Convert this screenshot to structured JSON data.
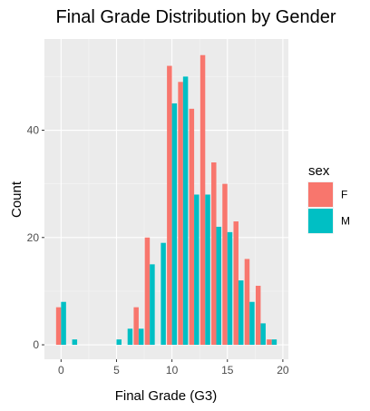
{
  "chart_data": {
    "type": "bar",
    "title": "Final Grade Distribution by Gender",
    "xlabel": "Final Grade (G3)",
    "ylabel": "Count",
    "x_ticks": [
      0,
      5,
      10,
      15,
      20
    ],
    "y_ticks": [
      0,
      20,
      40
    ],
    "xlim": [
      -1.5,
      20.5
    ],
    "ylim": [
      -2.7,
      57
    ],
    "grid": true,
    "legend": {
      "title": "sex",
      "position": "right"
    },
    "categories": [
      0,
      1,
      5,
      6,
      7,
      8,
      9,
      10,
      11,
      12,
      13,
      14,
      15,
      16,
      17,
      18,
      19
    ],
    "series": [
      {
        "name": "F",
        "color": "#F8766D",
        "values": [
          7,
          0,
          0,
          0,
          7,
          20,
          0,
          52,
          49,
          44,
          54,
          34,
          30,
          23,
          16,
          11,
          1
        ]
      },
      {
        "name": "M",
        "color": "#00BFC4",
        "values": [
          8,
          1,
          1,
          3,
          3,
          15,
          19,
          45,
          50,
          28,
          28,
          22,
          21,
          12,
          8,
          4,
          1
        ]
      }
    ]
  }
}
